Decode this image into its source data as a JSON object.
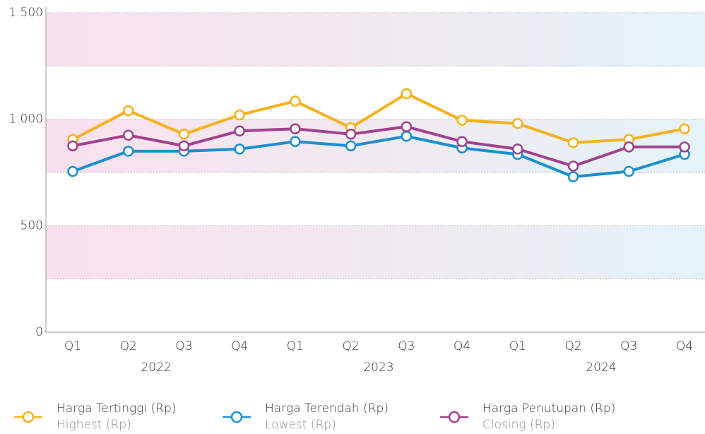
{
  "chart_data": {
    "type": "line",
    "categories": [
      "Q1",
      "Q2",
      "Q3",
      "Q4",
      "Q1",
      "Q2",
      "Q3",
      "Q4",
      "Q1",
      "Q2",
      "Q3",
      "Q4"
    ],
    "groups": [
      "2022",
      "2023",
      "2024"
    ],
    "series": [
      {
        "name": "Harga Tertinggi (Rp)",
        "subname": "Highest (Rp)",
        "color": "#f5b21d",
        "values": [
          905,
          1040,
          930,
          1020,
          1085,
          960,
          1120,
          995,
          980,
          890,
          905,
          955
        ]
      },
      {
        "name": "Harga Terendah (Rp)",
        "subname": "Lowest (Rp)",
        "color": "#1a8fce",
        "values": [
          755,
          850,
          850,
          860,
          895,
          875,
          920,
          865,
          835,
          730,
          755,
          835
        ]
      },
      {
        "name": "Harga Penutupan (Rp)",
        "subname": "Closing (Rp)",
        "color": "#a2418e",
        "values": [
          875,
          925,
          875,
          945,
          955,
          930,
          965,
          895,
          860,
          780,
          870,
          870
        ]
      }
    ],
    "ylim": [
      0,
      1500
    ],
    "yticks": [
      0,
      500,
      {
        "value": 1000,
        "label": "1.000"
      },
      {
        "value": 1500,
        "label": "1.500"
      }
    ],
    "bands": [
      [
        250,
        500
      ],
      [
        750,
        1000
      ],
      [
        1250,
        1500
      ]
    ],
    "band_lines": [
      250,
      750,
      1250
    ]
  }
}
